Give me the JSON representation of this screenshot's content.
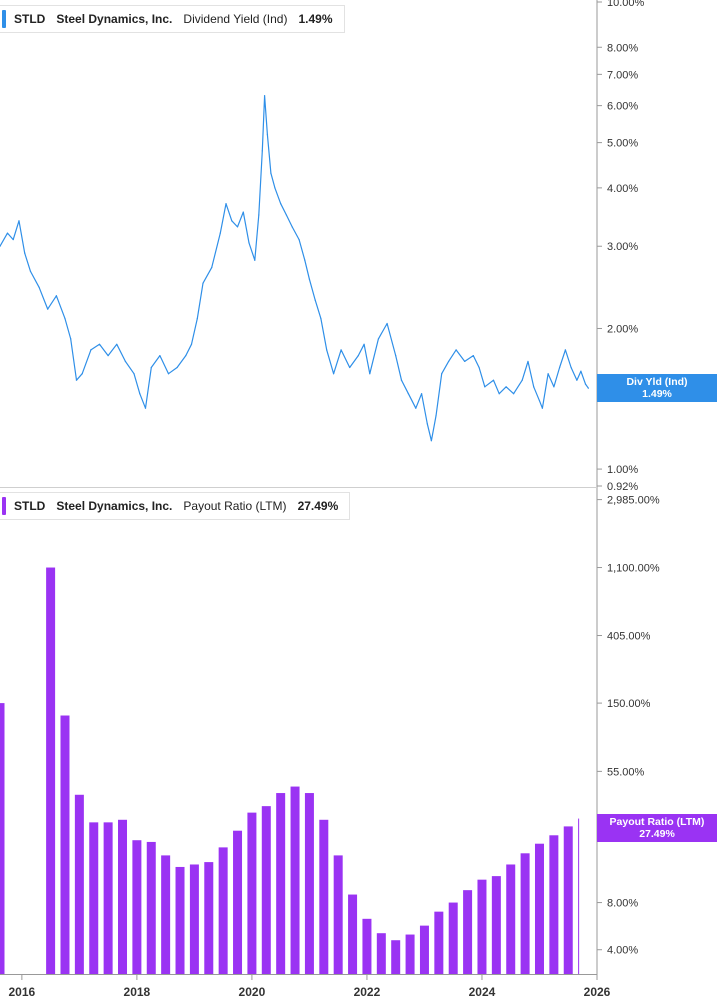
{
  "colors": {
    "yield": "#2f8fe8",
    "payout": "#9a33f3",
    "axis": "#999999",
    "grid": "#dddddd"
  },
  "top_panel": {
    "legend": {
      "ticker": "STLD",
      "company": "Steel Dynamics, Inc.",
      "metric": "Dividend Yield (Ind)",
      "value": "1.49%"
    },
    "tag": {
      "label": "Div Yld (Ind)",
      "value": "1.49%"
    }
  },
  "bottom_panel": {
    "legend": {
      "ticker": "STLD",
      "company": "Steel Dynamics, Inc.",
      "metric": "Payout Ratio (LTM)",
      "value": "27.49%"
    },
    "tag": {
      "label": "Payout Ratio (LTM)",
      "value": "27.49%"
    }
  },
  "chart_data": [
    {
      "type": "line",
      "title": "Dividend Yield (Ind)",
      "series_name": "Dividend Yield (Ind)",
      "y_scale": "log",
      "y_unit": "%",
      "y_ticks": [
        "10.00%",
        "8.00%",
        "7.00%",
        "6.00%",
        "5.00%",
        "4.00%",
        "3.00%",
        "2.00%",
        "1.00%",
        "0.92%"
      ],
      "y_tick_values": [
        10,
        8,
        7,
        6,
        5,
        4,
        3,
        2,
        1,
        0.92
      ],
      "ylim": [
        0.92,
        10
      ],
      "x_ticks": [
        "2016",
        "2018",
        "2020",
        "2022",
        "2024",
        "2026"
      ],
      "x_tick_values": [
        2016,
        2018,
        2020,
        2022,
        2024,
        2026
      ],
      "xlim": [
        2015.62,
        2026
      ],
      "last_value": 1.49,
      "points": [
        [
          2015.62,
          3.0
        ],
        [
          2015.75,
          3.2
        ],
        [
          2015.85,
          3.1
        ],
        [
          2015.95,
          3.4
        ],
        [
          2016.05,
          2.9
        ],
        [
          2016.15,
          2.65
        ],
        [
          2016.3,
          2.45
        ],
        [
          2016.45,
          2.2
        ],
        [
          2016.6,
          2.35
        ],
        [
          2016.75,
          2.1
        ],
        [
          2016.85,
          1.9
        ],
        [
          2016.95,
          1.55
        ],
        [
          2017.05,
          1.6
        ],
        [
          2017.2,
          1.8
        ],
        [
          2017.35,
          1.85
        ],
        [
          2017.5,
          1.75
        ],
        [
          2017.65,
          1.85
        ],
        [
          2017.8,
          1.7
        ],
        [
          2017.95,
          1.6
        ],
        [
          2018.05,
          1.45
        ],
        [
          2018.15,
          1.35
        ],
        [
          2018.25,
          1.65
        ],
        [
          2018.4,
          1.75
        ],
        [
          2018.55,
          1.6
        ],
        [
          2018.7,
          1.65
        ],
        [
          2018.85,
          1.75
        ],
        [
          2018.95,
          1.85
        ],
        [
          2019.05,
          2.1
        ],
        [
          2019.15,
          2.5
        ],
        [
          2019.3,
          2.7
        ],
        [
          2019.45,
          3.2
        ],
        [
          2019.55,
          3.7
        ],
        [
          2019.65,
          3.4
        ],
        [
          2019.75,
          3.3
        ],
        [
          2019.85,
          3.55
        ],
        [
          2019.95,
          3.05
        ],
        [
          2020.05,
          2.8
        ],
        [
          2020.12,
          3.5
        ],
        [
          2020.18,
          4.8
        ],
        [
          2020.22,
          6.3
        ],
        [
          2020.27,
          5.2
        ],
        [
          2020.33,
          4.3
        ],
        [
          2020.4,
          4.0
        ],
        [
          2020.5,
          3.7
        ],
        [
          2020.6,
          3.5
        ],
        [
          2020.7,
          3.3
        ],
        [
          2020.82,
          3.1
        ],
        [
          2020.92,
          2.8
        ],
        [
          2021.0,
          2.55
        ],
        [
          2021.1,
          2.3
        ],
        [
          2021.2,
          2.1
        ],
        [
          2021.3,
          1.8
        ],
        [
          2021.42,
          1.6
        ],
        [
          2021.55,
          1.8
        ],
        [
          2021.7,
          1.65
        ],
        [
          2021.85,
          1.75
        ],
        [
          2021.95,
          1.85
        ],
        [
          2022.05,
          1.6
        ],
        [
          2022.2,
          1.9
        ],
        [
          2022.35,
          2.05
        ],
        [
          2022.5,
          1.75
        ],
        [
          2022.6,
          1.55
        ],
        [
          2022.72,
          1.45
        ],
        [
          2022.85,
          1.35
        ],
        [
          2022.95,
          1.45
        ],
        [
          2023.05,
          1.25
        ],
        [
          2023.12,
          1.15
        ],
        [
          2023.2,
          1.3
        ],
        [
          2023.3,
          1.6
        ],
        [
          2023.42,
          1.7
        ],
        [
          2023.55,
          1.8
        ],
        [
          2023.7,
          1.7
        ],
        [
          2023.85,
          1.75
        ],
        [
          2023.95,
          1.65
        ],
        [
          2024.05,
          1.5
        ],
        [
          2024.2,
          1.55
        ],
        [
          2024.3,
          1.45
        ],
        [
          2024.42,
          1.5
        ],
        [
          2024.55,
          1.45
        ],
        [
          2024.7,
          1.55
        ],
        [
          2024.8,
          1.7
        ],
        [
          2024.9,
          1.5
        ],
        [
          2025.0,
          1.4
        ],
        [
          2025.05,
          1.35
        ],
        [
          2025.15,
          1.6
        ],
        [
          2025.25,
          1.5
        ],
        [
          2025.35,
          1.65
        ],
        [
          2025.45,
          1.8
        ],
        [
          2025.55,
          1.65
        ],
        [
          2025.65,
          1.55
        ],
        [
          2025.72,
          1.62
        ],
        [
          2025.8,
          1.52
        ],
        [
          2025.85,
          1.49
        ]
      ]
    },
    {
      "type": "bar",
      "title": "Payout Ratio (LTM)",
      "series_name": "Payout Ratio (LTM)",
      "y_scale": "log",
      "y_unit": "%",
      "y_ticks": [
        "2,985.00%",
        "1,100.00%",
        "405.00%",
        "150.00%",
        "55.00%",
        "8.00%",
        "4.00%"
      ],
      "y_tick_values": [
        2985,
        1100,
        405,
        150,
        55,
        8,
        4
      ],
      "ylim": [
        2.8,
        4100
      ],
      "x_ticks": [
        "2016",
        "2018",
        "2020",
        "2022",
        "2024",
        "2026"
      ],
      "x_tick_values": [
        2016,
        2018,
        2020,
        2022,
        2024,
        2026
      ],
      "xlim": [
        2015.62,
        2026
      ],
      "last_value": 27.49,
      "bars": [
        [
          2015.62,
          150
        ],
        [
          2016.5,
          1100
        ],
        [
          2016.75,
          125
        ],
        [
          2017.0,
          39
        ],
        [
          2017.25,
          26
        ],
        [
          2017.5,
          26
        ],
        [
          2017.75,
          27
        ],
        [
          2018.0,
          20
        ],
        [
          2018.25,
          19.5
        ],
        [
          2018.5,
          16
        ],
        [
          2018.75,
          13.5
        ],
        [
          2019.0,
          14
        ],
        [
          2019.25,
          14.5
        ],
        [
          2019.5,
          18
        ],
        [
          2019.75,
          23
        ],
        [
          2020.0,
          30
        ],
        [
          2020.25,
          33
        ],
        [
          2020.5,
          40
        ],
        [
          2020.75,
          44
        ],
        [
          2021.0,
          40
        ],
        [
          2021.25,
          27
        ],
        [
          2021.5,
          16
        ],
        [
          2021.75,
          9
        ],
        [
          2022.0,
          6.3
        ],
        [
          2022.25,
          5.1
        ],
        [
          2022.5,
          4.6
        ],
        [
          2022.75,
          5.0
        ],
        [
          2023.0,
          5.7
        ],
        [
          2023.25,
          7.0
        ],
        [
          2023.5,
          8.0
        ],
        [
          2023.75,
          9.6
        ],
        [
          2024.0,
          11.2
        ],
        [
          2024.25,
          11.8
        ],
        [
          2024.5,
          14.0
        ],
        [
          2024.75,
          16.5
        ],
        [
          2025.0,
          19.0
        ],
        [
          2025.25,
          21.5
        ],
        [
          2025.5,
          24.5
        ],
        [
          2025.75,
          27.49
        ]
      ]
    }
  ]
}
